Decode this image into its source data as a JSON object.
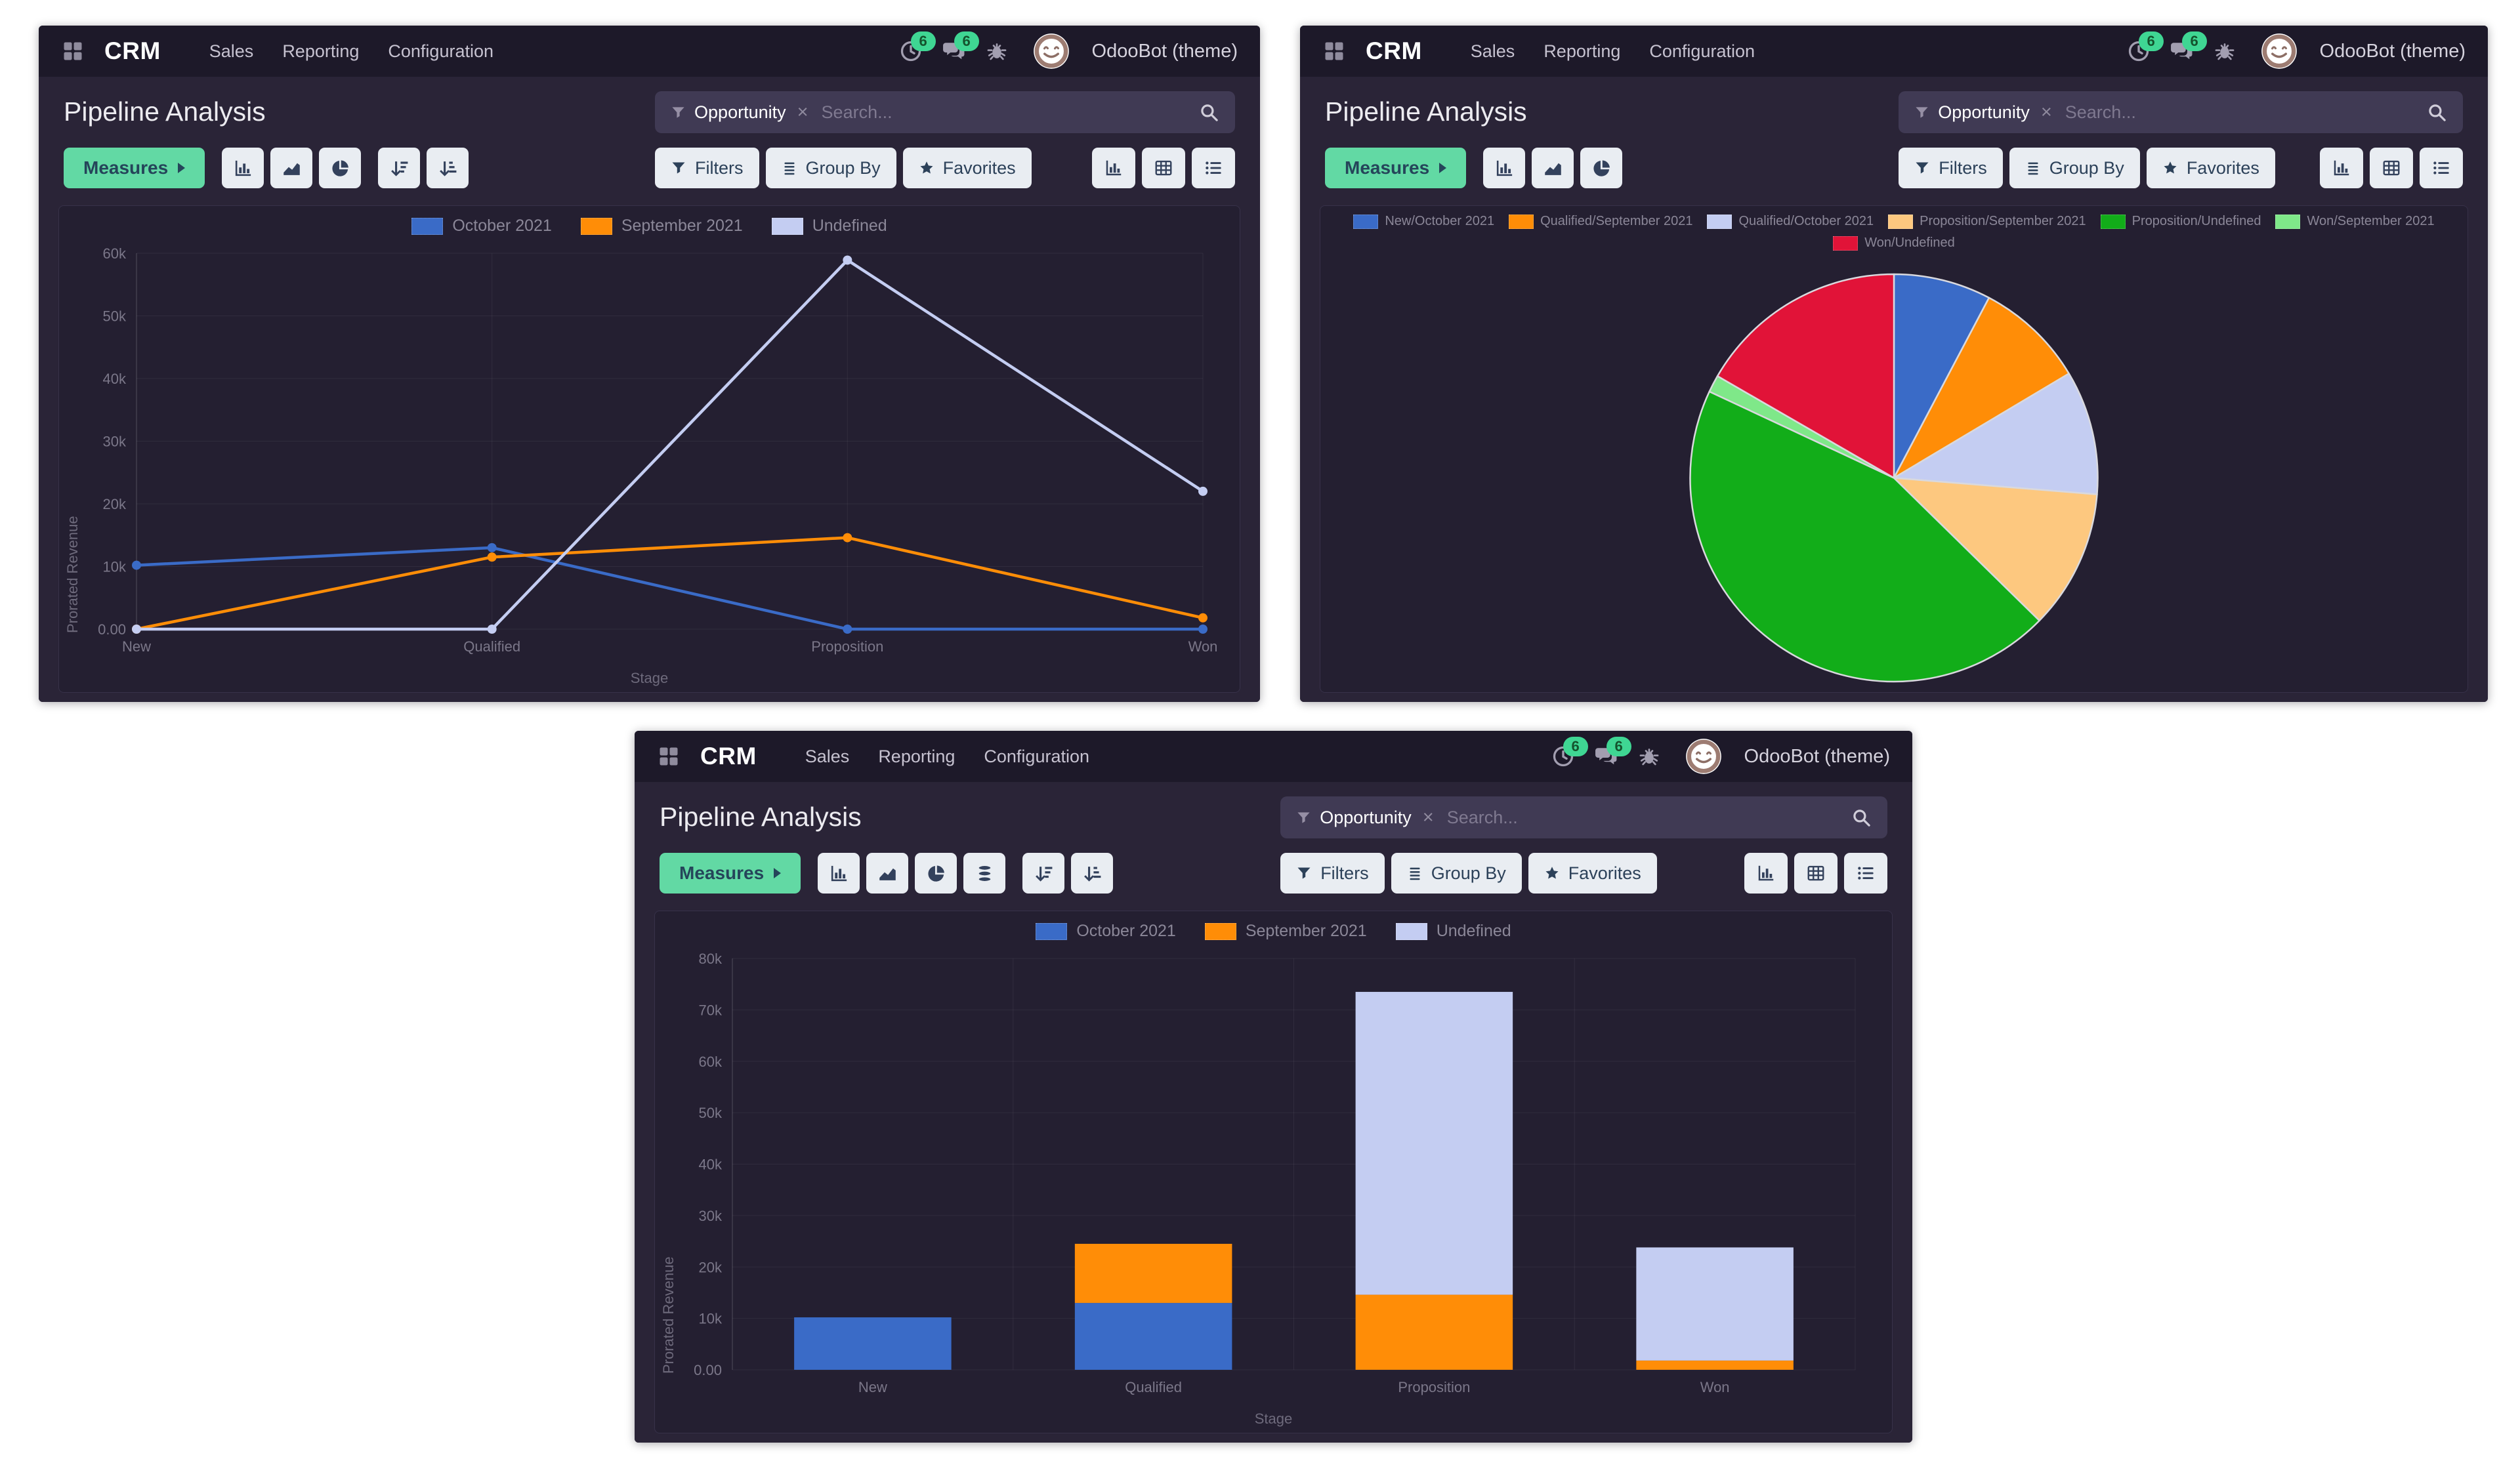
{
  "app": {
    "name": "CRM",
    "menus": [
      "Sales",
      "Reporting",
      "Configuration"
    ],
    "systray": {
      "activity_count": "6",
      "message_count": "6"
    },
    "user_name": "OdooBot (theme)"
  },
  "panel": {
    "title": "Pipeline Analysis",
    "search_facet": "Opportunity",
    "facet_remove_glyph": "×",
    "search_placeholder": "Search...",
    "measures_label": "Measures",
    "filters_label": "Filters",
    "group_by_label": "Group By",
    "favorites_label": "Favorites"
  },
  "colors": {
    "accent_green": "#62d9a4",
    "navbar_bg": "#1d1929",
    "panel_bg": "#2a2437",
    "badge_green": "#3fd693",
    "october_blue": "#3a6bc7",
    "september_orange": "#ff8d07",
    "undefined_lavender": "#c4cdf2",
    "proposition_september_peach": "#fdc87f",
    "proposition_undefined_green": "#12ad19",
    "won_september_lightgreen": "#7fe889",
    "won_undefined_red": "#e11338"
  },
  "chart_data": [
    {
      "id": "line",
      "type": "line",
      "categories": [
        "New",
        "Qualified",
        "Proposition",
        "Won"
      ],
      "series": [
        {
          "name": "October 2021",
          "color": "#3a6bc7",
          "values": [
            10200,
            13000,
            0,
            0
          ]
        },
        {
          "name": "September 2021",
          "color": "#ff8d07",
          "values": [
            0,
            11500,
            14600,
            1800
          ]
        },
        {
          "name": "Undefined",
          "color": "#c4cdf2",
          "values": [
            0,
            0,
            58900,
            22000
          ]
        }
      ],
      "xlabel": "Stage",
      "ylabel": "Prorated Revenue",
      "ylim": [
        0,
        60000
      ],
      "yticks": [
        "0.00",
        "10k",
        "20k",
        "30k",
        "40k",
        "50k",
        "60k"
      ],
      "grid": true,
      "legend_position": "top-center"
    },
    {
      "id": "pie",
      "type": "pie",
      "slices": [
        {
          "label": "New/October 2021",
          "color": "#3a6bc7",
          "value": 10200
        },
        {
          "label": "Qualified/September 2021",
          "color": "#ff8d07",
          "value": 11500
        },
        {
          "label": "Qualified/October 2021",
          "color": "#c4cdf2",
          "value": 13000
        },
        {
          "label": "Proposition/September 2021",
          "color": "#fdc87f",
          "value": 14600
        },
        {
          "label": "Proposition/Undefined",
          "color": "#12ad19",
          "value": 58900
        },
        {
          "label": "Won/September 2021",
          "color": "#7fe889",
          "value": 1800
        },
        {
          "label": "Won/Undefined",
          "color": "#e11338",
          "value": 22000
        }
      ],
      "legend_position": "top-center"
    },
    {
      "id": "bar",
      "type": "bar",
      "stacked": true,
      "categories": [
        "New",
        "Qualified",
        "Proposition",
        "Won"
      ],
      "series": [
        {
          "name": "October 2021",
          "color": "#3a6bc7",
          "values": [
            10200,
            13000,
            0,
            0
          ]
        },
        {
          "name": "September 2021",
          "color": "#ff8d07",
          "values": [
            0,
            11500,
            14600,
            1800
          ]
        },
        {
          "name": "Undefined",
          "color": "#c4cdf2",
          "values": [
            0,
            0,
            58900,
            22000
          ]
        }
      ],
      "xlabel": "Stage",
      "ylabel": "Prorated Revenue",
      "ylim": [
        0,
        80000
      ],
      "yticks": [
        "0.00",
        "10k",
        "20k",
        "30k",
        "40k",
        "50k",
        "60k",
        "70k",
        "80k"
      ],
      "grid": true,
      "legend_position": "top-center"
    }
  ]
}
